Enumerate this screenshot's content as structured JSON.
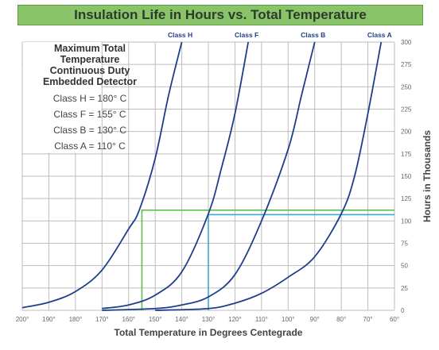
{
  "title": "Insulation Life in Hours vs. Total Temperature",
  "info_box": {
    "heading": [
      "Maximum Total",
      "Temperature",
      "Continuous Duty",
      "Embedded Detector"
    ],
    "lines": [
      "Class H = 180° C",
      "Class F = 155° C",
      "Class B = 130° C",
      "Class A = 110° C"
    ]
  },
  "colors": {
    "curve": "#1f3e8a",
    "grid": "#bdbdbd",
    "green_marker": "#5cc04a",
    "cyan_marker": "#3aa9d6",
    "title_bg": "#8ac46a"
  },
  "chart_data": {
    "type": "line",
    "xlabel": "Total Temperature in Degrees Centegrade",
    "ylabel": "Hours in Thousands",
    "x_axis_reversed": true,
    "xlim": [
      200,
      60
    ],
    "ylim": [
      0,
      300
    ],
    "x_ticks": [
      "200°",
      "190°",
      "180°",
      "170°",
      "160°",
      "150°",
      "140°",
      "130°",
      "120°",
      "110°",
      "100°",
      "90°",
      "80°",
      "70°",
      "60°"
    ],
    "y_ticks": [
      "0",
      "25",
      "50",
      "75",
      "100",
      "125",
      "150",
      "175",
      "200",
      "225",
      "250",
      "275",
      "300"
    ],
    "grid": true,
    "series": [
      {
        "name": "Class H",
        "x": [
          200,
          190,
          180,
          170,
          160,
          156,
          150,
          145,
          140
        ],
        "y": [
          3,
          9,
          21,
          45,
          91,
          112,
          170,
          240,
          300
        ]
      },
      {
        "name": "Class F",
        "x": [
          170,
          160,
          150,
          140,
          130,
          125,
          120,
          115
        ],
        "y": [
          2,
          6,
          17,
          43,
          108,
          160,
          220,
          300
        ]
      },
      {
        "name": "Class B",
        "x": [
          170,
          150,
          140,
          130,
          120,
          110,
          100,
          95,
          90
        ],
        "y": [
          0,
          2,
          6,
          15,
          40,
          100,
          180,
          240,
          300
        ]
      },
      {
        "name": "Class A",
        "x": [
          150,
          130,
          120,
          110,
          100,
          90,
          80,
          75,
          70,
          65
        ],
        "y": [
          0,
          2,
          8,
          19,
          37,
          60,
          108,
          150,
          220,
          300
        ]
      }
    ],
    "markers": [
      {
        "color": "green",
        "temperature": 155,
        "hours": 112
      },
      {
        "color": "cyan",
        "temperature": 130,
        "hours": 107
      }
    ]
  }
}
